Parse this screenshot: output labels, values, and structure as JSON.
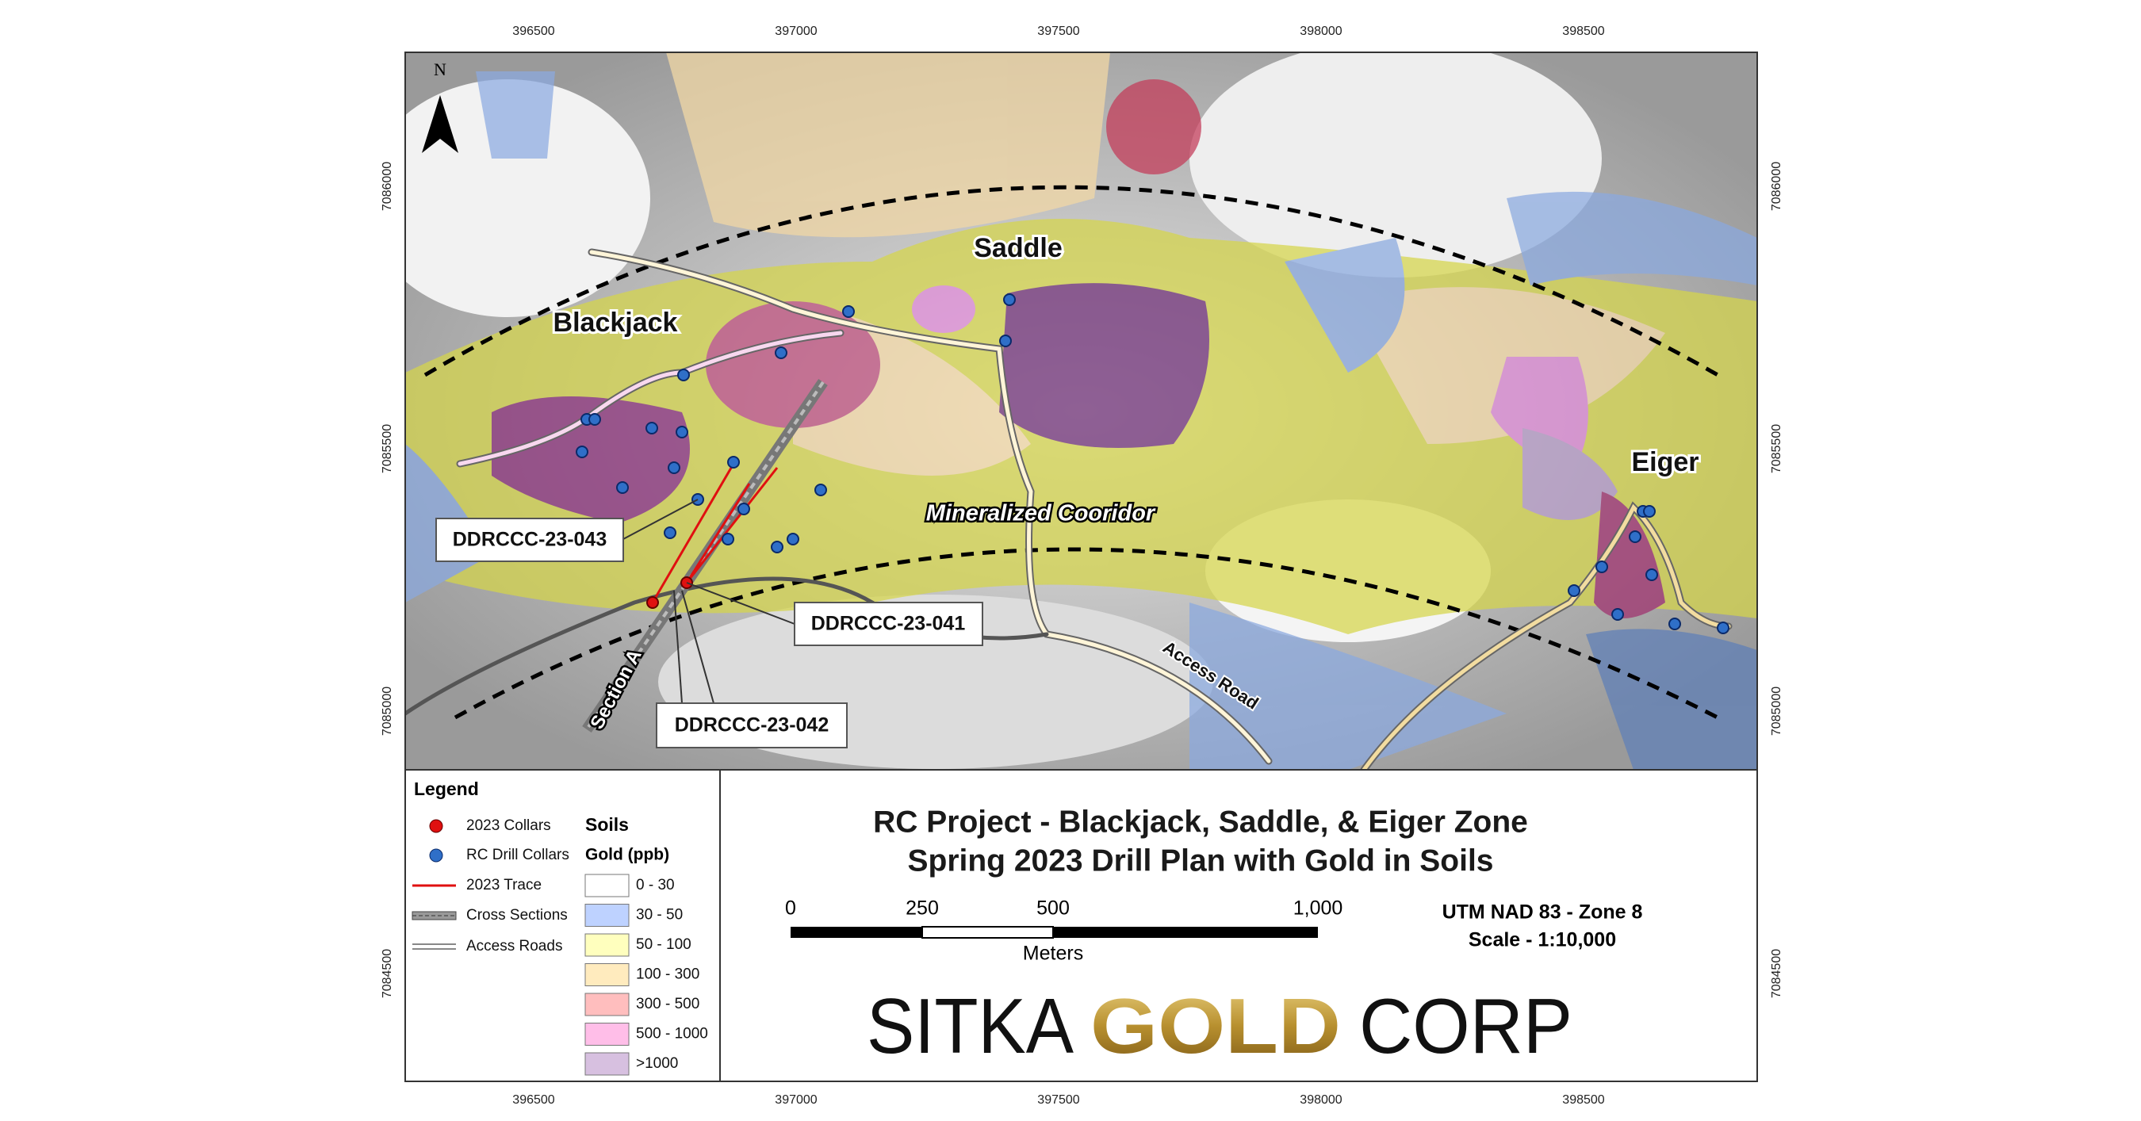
{
  "map": {
    "x_labels": [
      396500,
      397000,
      397500,
      398000,
      398500
    ],
    "y_labels": [
      7086000,
      7085500,
      7085000,
      7084500
    ],
    "north": "N",
    "places": [
      "Blackjack",
      "Saddle",
      "Eiger"
    ],
    "corridor": "Mineralized Cooridor",
    "road": "Access Road",
    "section": "Section A",
    "holes": [
      "DDRCCC-23-043",
      "DDRCCC-23-041",
      "DDRCCC-23-042"
    ]
  },
  "legend": {
    "title": "Legend",
    "items": [
      "2023 Collars",
      "RC Drill Collars",
      "2023 Trace",
      "Cross Sections",
      "Access Roads"
    ],
    "soils_title": "Soils",
    "soils_subtitle": "Gold (ppb)",
    "soil_classes": [
      {
        "label": "0 - 30",
        "color": "#ffffff"
      },
      {
        "label": "30 - 50",
        "color": "#bed2ff"
      },
      {
        "label": "50 - 100",
        "color": "#ffffbe"
      },
      {
        "label": "100 - 300",
        "color": "#ffebbe"
      },
      {
        "label": "300 - 500",
        "color": "#ffbebe"
      },
      {
        "label": "500 - 1000",
        "color": "#ffbee8"
      },
      {
        "label": ">1000",
        "color": "#d7c0e0"
      }
    ]
  },
  "title": {
    "line1": "RC Project - Blackjack, Saddle, & Eiger Zone",
    "line2": "Spring 2023 Drill Plan with Gold in Soils"
  },
  "scale_bar": {
    "ticks": [
      "0",
      "250",
      "500",
      "1,000"
    ],
    "unit": "Meters"
  },
  "projection": [
    "UTM NAD 83 - Zone 8",
    "Scale - 1:10,000"
  ],
  "logo": {
    "left": "SITKA",
    "middle": "GOLD",
    "right": "CORP"
  }
}
